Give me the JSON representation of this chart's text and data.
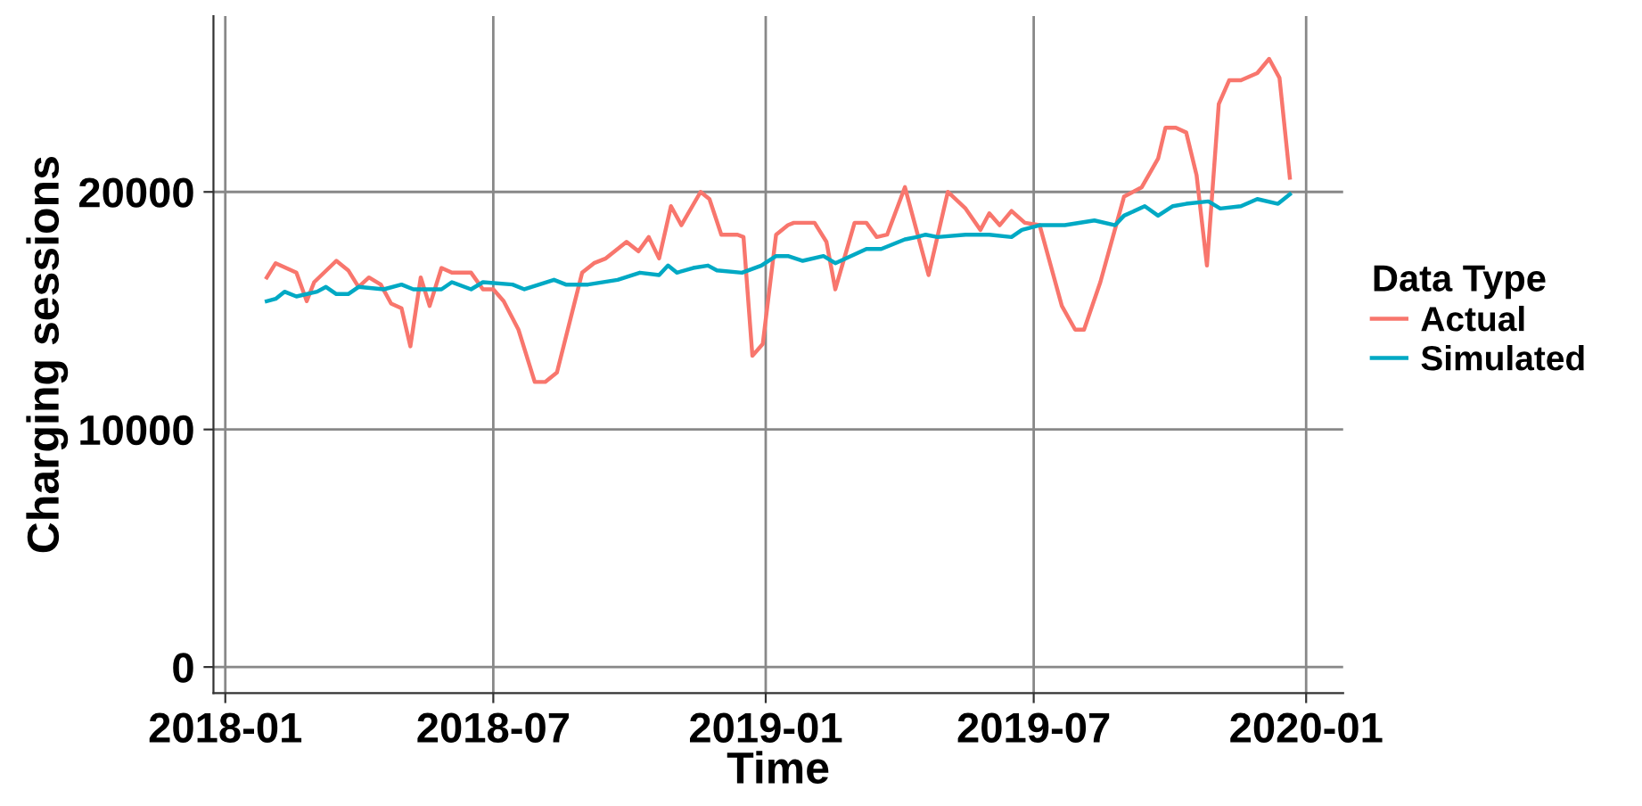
{
  "chart_data": {
    "type": "line",
    "xlabel": "Time",
    "ylabel": "Charging sessions",
    "legend_title": "Data Type",
    "legend": "right",
    "grid": true,
    "line_style": "solid",
    "marker": "none",
    "xlim": [
      "2017-12-24",
      "2020-01-26"
    ],
    "ylim": [
      -1100,
      27400
    ],
    "xticks": [
      {
        "value": "2018-01-01",
        "label": "2018-01"
      },
      {
        "value": "2018-07-01",
        "label": "2018-07"
      },
      {
        "value": "2019-01-01",
        "label": "2019-01"
      },
      {
        "value": "2019-07-01",
        "label": "2019-07"
      },
      {
        "value": "2020-01-01",
        "label": "2020-01"
      }
    ],
    "yticks": [
      0,
      10000,
      20000
    ],
    "series": [
      {
        "name": "Actual",
        "color": "#f8766d",
        "x": [
          "2018-01-29",
          "2018-02-04",
          "2018-02-18",
          "2018-02-25",
          "2018-03-02",
          "2018-03-17",
          "2018-03-25",
          "2018-04-01",
          "2018-04-08",
          "2018-04-16",
          "2018-04-23",
          "2018-04-30",
          "2018-05-06",
          "2018-05-13",
          "2018-05-19",
          "2018-05-27",
          "2018-06-03",
          "2018-06-16",
          "2018-06-24",
          "2018-07-01",
          "2018-07-08",
          "2018-07-18",
          "2018-07-29",
          "2018-08-05",
          "2018-08-13",
          "2018-08-30",
          "2018-09-07",
          "2018-09-15",
          "2018-09-29",
          "2018-10-07",
          "2018-10-14",
          "2018-10-21",
          "2018-10-29",
          "2018-11-05",
          "2018-11-18",
          "2018-11-24",
          "2018-12-02",
          "2018-12-13",
          "2018-12-17",
          "2018-12-23",
          "2018-12-30",
          "2019-01-08",
          "2019-01-16",
          "2019-01-20",
          "2019-02-03",
          "2019-02-11",
          "2019-02-17",
          "2019-03-02",
          "2019-03-10",
          "2019-03-17",
          "2019-03-24",
          "2019-04-05",
          "2019-04-21",
          "2019-05-04",
          "2019-05-16",
          "2019-05-26",
          "2019-06-01",
          "2019-06-08",
          "2019-06-16",
          "2019-06-25",
          "2019-07-05",
          "2019-07-20",
          "2019-07-29",
          "2019-08-04",
          "2019-08-15",
          "2019-08-31",
          "2019-09-12",
          "2019-09-23",
          "2019-09-28",
          "2019-10-05",
          "2019-10-12",
          "2019-10-19",
          "2019-10-26",
          "2019-11-03",
          "2019-11-10",
          "2019-11-18",
          "2019-11-29",
          "2019-12-07",
          "2019-12-14",
          "2019-12-21"
        ],
        "values": [
          16400,
          17000,
          16600,
          15400,
          16200,
          17100,
          16700,
          16000,
          16400,
          16100,
          15300,
          15100,
          13500,
          16400,
          15200,
          16800,
          16600,
          16600,
          15900,
          15900,
          15400,
          14200,
          12000,
          12000,
          12400,
          16600,
          17000,
          17200,
          17900,
          17500,
          18100,
          17200,
          19400,
          18600,
          20000,
          19700,
          18200,
          18200,
          18100,
          13100,
          13600,
          18200,
          18600,
          18700,
          18700,
          17900,
          15900,
          18700,
          18700,
          18100,
          18200,
          20200,
          16500,
          20000,
          19300,
          18400,
          19100,
          18600,
          19200,
          18700,
          18600,
          15200,
          14200,
          14200,
          16200,
          19800,
          20200,
          21400,
          22700,
          22700,
          22500,
          20700,
          16900,
          23700,
          24700,
          24700,
          25000,
          25600,
          24800,
          20600
        ]
      },
      {
        "name": "Simulated",
        "color": "#00a9c4",
        "x": [
          "2018-01-29",
          "2018-02-04",
          "2018-02-10",
          "2018-02-18",
          "2018-03-04",
          "2018-03-10",
          "2018-03-17",
          "2018-03-25",
          "2018-04-01",
          "2018-04-18",
          "2018-04-30",
          "2018-05-08",
          "2018-05-27",
          "2018-06-03",
          "2018-06-16",
          "2018-06-24",
          "2018-07-14",
          "2018-07-22",
          "2018-08-11",
          "2018-08-19",
          "2018-09-03",
          "2018-09-23",
          "2018-10-08",
          "2018-10-21",
          "2018-10-27",
          "2018-11-02",
          "2018-11-13",
          "2018-11-23",
          "2018-11-29",
          "2018-12-16",
          "2018-12-29",
          "2019-01-08",
          "2019-01-16",
          "2019-01-26",
          "2019-02-09",
          "2019-02-17",
          "2019-03-10",
          "2019-03-20",
          "2019-04-05",
          "2019-04-13",
          "2019-04-19",
          "2019-04-27",
          "2019-05-16",
          "2019-06-01",
          "2019-06-16",
          "2019-06-23",
          "2019-07-05",
          "2019-07-22",
          "2019-08-11",
          "2019-08-25",
          "2019-08-31",
          "2019-09-14",
          "2019-09-23",
          "2019-10-03",
          "2019-10-12",
          "2019-10-27",
          "2019-11-04",
          "2019-11-18",
          "2019-11-29",
          "2019-12-13",
          "2019-12-21"
        ],
        "values": [
          15400,
          15500,
          15800,
          15600,
          15800,
          16000,
          15700,
          15700,
          16000,
          15900,
          16100,
          15900,
          15900,
          16200,
          15900,
          16200,
          16100,
          15900,
          16300,
          16100,
          16100,
          16300,
          16600,
          16500,
          16900,
          16600,
          16800,
          16900,
          16700,
          16600,
          16900,
          17300,
          17300,
          17100,
          17300,
          17000,
          17600,
          17600,
          18000,
          18100,
          18200,
          18100,
          18200,
          18200,
          18100,
          18400,
          18600,
          18600,
          18800,
          18600,
          19000,
          19400,
          19000,
          19400,
          19500,
          19600,
          19300,
          19400,
          19700,
          19500,
          19900
        ]
      }
    ]
  }
}
